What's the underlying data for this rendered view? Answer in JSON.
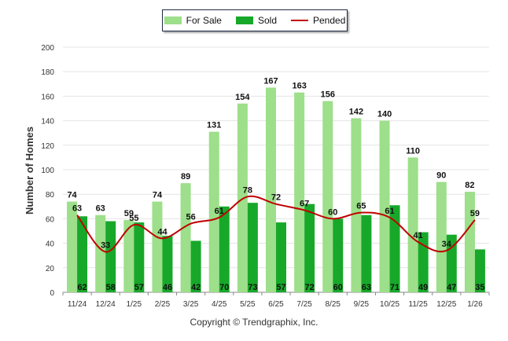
{
  "chart_data": {
    "type": "bar",
    "categories": [
      "11/24",
      "12/24",
      "1/25",
      "2/25",
      "3/25",
      "4/25",
      "5/25",
      "6/25",
      "7/25",
      "8/25",
      "9/25",
      "10/25",
      "11/25",
      "12/25",
      "1/26"
    ],
    "series": [
      {
        "name": "For Sale",
        "kind": "bar",
        "color": "#9ddf8a",
        "values": [
          74,
          63,
          59,
          74,
          89,
          131,
          154,
          167,
          163,
          156,
          142,
          140,
          110,
          90,
          82
        ]
      },
      {
        "name": "Sold",
        "kind": "bar",
        "color": "#17a82a",
        "values": [
          62,
          58,
          57,
          46,
          42,
          70,
          73,
          57,
          72,
          60,
          63,
          71,
          49,
          47,
          35
        ]
      },
      {
        "name": "Pended",
        "kind": "line",
        "color": "#c00000",
        "values": [
          63,
          33,
          55,
          44,
          56,
          61,
          78,
          72,
          67,
          60,
          65,
          61,
          41,
          34,
          59
        ]
      }
    ],
    "ylabel": "Number of Homes",
    "xlabel": "",
    "ylim": [
      0,
      200
    ],
    "yticks": [
      0,
      20,
      40,
      60,
      80,
      100,
      120,
      140,
      160,
      180,
      200
    ],
    "grid": true,
    "legend_position": "top-center"
  },
  "credit": "Copyright © Trendgraphix, Inc."
}
